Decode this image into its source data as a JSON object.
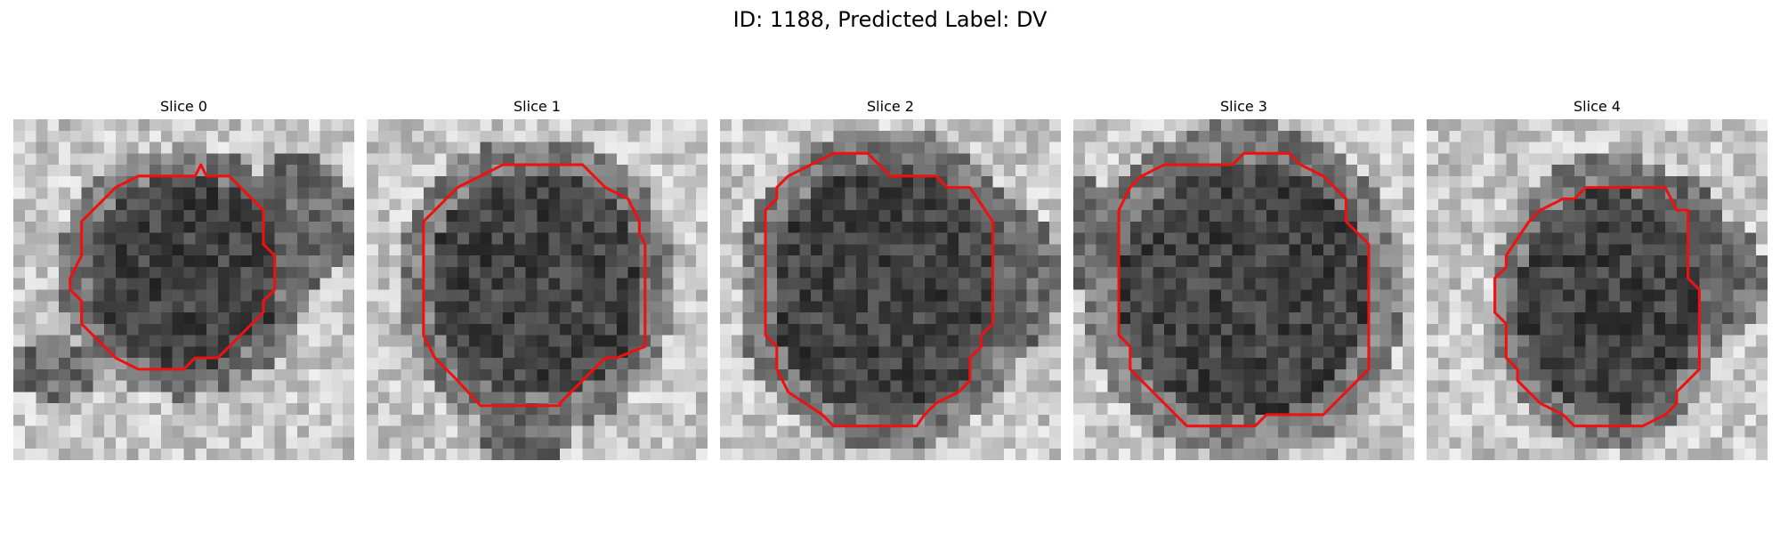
{
  "figure": {
    "title": "ID: 1188, Predicted Label: DV"
  },
  "colors": {
    "contour": "#ee1111",
    "background": "#ffffff"
  },
  "panels": [
    {
      "title": "Slice 0"
    },
    {
      "title": "Slice 1"
    },
    {
      "title": "Slice 2"
    },
    {
      "title": "Slice 3"
    },
    {
      "title": "Slice 4"
    }
  ]
}
